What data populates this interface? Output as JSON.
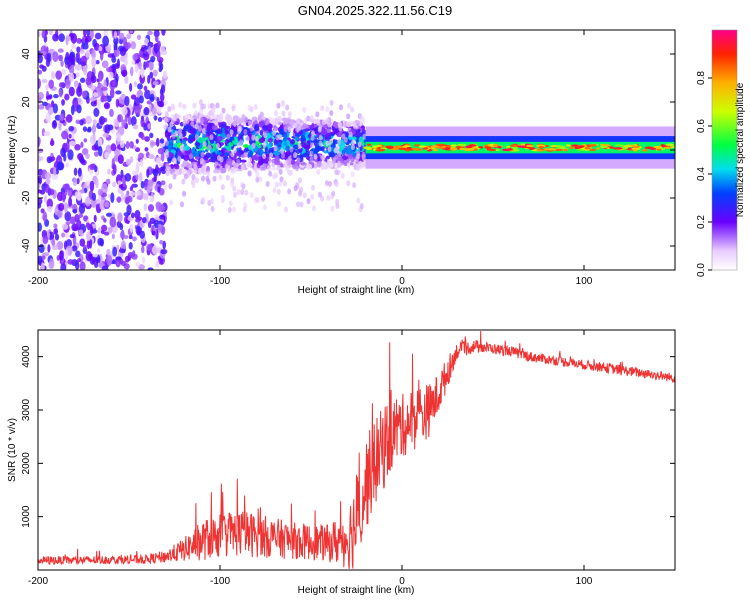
{
  "title": "GN04.2025.322.11.56.C19",
  "chart_data": [
    {
      "type": "heatmap",
      "name": "spectrogram",
      "xlabel": "Height of straight line (km)",
      "ylabel": "Frequency (Hz)",
      "xlim": [
        -200,
        150
      ],
      "ylim": [
        -50,
        50
      ],
      "xticks": [
        -200,
        -100,
        0,
        100
      ],
      "xtick_labels": [
        "-200",
        "-100",
        "0",
        "100"
      ],
      "yticks": [
        -40,
        -20,
        0,
        20,
        40
      ],
      "ytick_labels": [
        "-40",
        "-20",
        "0",
        "20",
        "40"
      ],
      "colorbar": {
        "label": "Normalized spectral amplitude",
        "range": [
          0,
          1
        ],
        "ticks": [
          0.0,
          0.2,
          0.4,
          0.6,
          0.8
        ],
        "tick_labels": [
          "0.0",
          "0.2",
          "0.4",
          "0.6",
          "0.8"
        ]
      },
      "regions": [
        {
          "x_range": [
            -200,
            -130
          ],
          "freq_range": [
            -50,
            50
          ],
          "amplitude": 0.15,
          "description": "broadband noise"
        },
        {
          "x_range": [
            -130,
            -20
          ],
          "freq_range": [
            -10,
            15
          ],
          "amplitude": 0.35,
          "description": "scattered energy"
        },
        {
          "x_range": [
            -20,
            150
          ],
          "freq_range": [
            -1,
            3
          ],
          "amplitude": 0.85,
          "description": "narrow carrier band"
        }
      ]
    },
    {
      "type": "line",
      "name": "snr",
      "xlabel": "Height of straight line (km)",
      "ylabel": "SNR (10 * v/v)",
      "xlim": [
        -200,
        150
      ],
      "ylim": [
        0,
        4500
      ],
      "xticks": [
        -200,
        -100,
        0,
        100
      ],
      "xtick_labels": [
        "-200",
        "-100",
        "0",
        "100"
      ],
      "yticks": [
        1000,
        2000,
        3000,
        4000
      ],
      "ytick_labels": [
        "1000",
        "2000",
        "3000",
        "4000"
      ],
      "color": "#ee3333",
      "series": [
        {
          "name": "SNR",
          "x": [
            -200,
            -180,
            -160,
            -140,
            -130,
            -120,
            -110,
            -100,
            -90,
            -80,
            -70,
            -60,
            -50,
            -40,
            -30,
            -25,
            -20,
            -15,
            -10,
            -5,
            0,
            5,
            10,
            15,
            20,
            25,
            30,
            40,
            50,
            60,
            70,
            80,
            90,
            100,
            110,
            120,
            130,
            140,
            150
          ],
          "y": [
            180,
            180,
            190,
            200,
            250,
            380,
            550,
            650,
            700,
            650,
            600,
            550,
            520,
            500,
            600,
            900,
            1600,
            2000,
            2300,
            2600,
            2700,
            2800,
            2900,
            3000,
            3300,
            3700,
            4100,
            4200,
            4150,
            4100,
            4000,
            3950,
            3900,
            3850,
            3800,
            3750,
            3700,
            3650,
            3600
          ],
          "jitter": [
            80,
            80,
            80,
            90,
            120,
            220,
            380,
            420,
            450,
            420,
            380,
            350,
            340,
            350,
            600,
            900,
            900,
            800,
            800,
            700,
            600,
            600,
            600,
            500,
            400,
            300,
            150,
            120,
            100,
            100,
            100,
            90,
            90,
            90,
            90,
            100,
            90,
            90,
            90
          ]
        }
      ]
    }
  ]
}
